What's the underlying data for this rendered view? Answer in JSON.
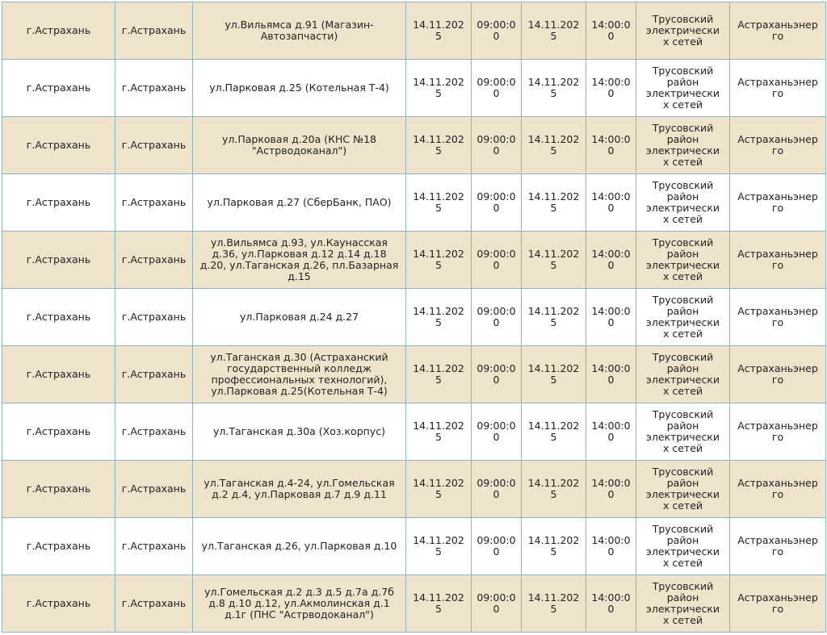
{
  "table": {
    "rows": [
      [
        "г.Астрахань",
        "г.Астрахань",
        "ул.Вильямса д.91 (Магазин-Автозапчасти)",
        "14.11.2025",
        "09:00:00",
        "14.11.2025",
        "14:00:00",
        "Трусовский электрических сетей",
        "Астраханьэнерго"
      ],
      [
        "г.Астрахань",
        "г.Астрахань",
        "ул.Парковая д.25 (Котельная Т-4)",
        "14.11.2025",
        "09:00:00",
        "14.11.2025",
        "14:00:00",
        "Трусовский район электрических сетей",
        "Астраханьэнерго"
      ],
      [
        "г.Астрахань",
        "г.Астрахань",
        "ул.Парковая д.20а (КНС №18 \"Астрводоканал\")",
        "14.11.2025",
        "09:00:00",
        "14.11.2025",
        "14:00:00",
        "Трусовский район электрических сетей",
        "Астраханьэнерго"
      ],
      [
        "г.Астрахань",
        "г.Астрахань",
        "ул.Парковая д.27 (СберБанк, ПАО)",
        "14.11.2025",
        "09:00:00",
        "14.11.2025",
        "14:00:00",
        "Трусовский район электрических сетей",
        "Астраханьэнерго"
      ],
      [
        "г.Астрахань",
        "г.Астрахань",
        "ул.Вильямса д.93, ул.Каунасская д.36, ул.Парковая д.12 д.14 д.18 д.20, ул.Таганская д.26, пл.Базарная д.15",
        "14.11.2025",
        "09:00:00",
        "14.11.2025",
        "14:00:00",
        "Трусовский район электрических сетей",
        "Астраханьэнерго"
      ],
      [
        "г.Астрахань",
        "г.Астрахань",
        "ул.Парковая д.24 д.27",
        "14.11.2025",
        "09:00:00",
        "14.11.2025",
        "14:00:00",
        "Трусовский район электрических сетей",
        "Астраханьэнерго"
      ],
      [
        "г.Астрахань",
        "г.Астрахань",
        "ул.Таганская д.30 (Астраханский государственный колледж профессиональных технологий), ул.Парковая д.25(Котельная Т-4)",
        "14.11.2025",
        "09:00:00",
        "14.11.2025",
        "14:00:00",
        "Трусовский район электрических сетей",
        "Астраханьэнерго"
      ],
      [
        "г.Астрахань",
        "г.Астрахань",
        "ул.Таганская д.30а (Хоз.корпус)",
        "14.11.2025",
        "09:00:00",
        "14.11.2025",
        "14:00:00",
        "Трусовский район электрических сетей",
        "Астраханьэнерго"
      ],
      [
        "г.Астрахань",
        "г.Астрахань",
        "ул.Таганская д.4-24, ул.Гомельская д.2 д.4, ул.Парковая д.7 д.9 д.11",
        "14.11.2025",
        "09:00:00",
        "14.11.2025",
        "14:00:00",
        "Трусовский район электрических сетей",
        "Астраханьэнерго"
      ],
      [
        "г.Астрахань",
        "г.Астрахань",
        "ул.Таганская д.26, ул.Парковая д.10",
        "14.11.2025",
        "09:00:00",
        "14.11.2025",
        "14:00:00",
        "Трусовский район электрических сетей",
        "Астраханьэнерго"
      ],
      [
        "г.Астрахань",
        "г.Астрахань",
        "ул.Гомельская д.2 д.3 д.5 д.7а д.7б д.8 д.10 д.12, ул.Акмолинская д.1 д.1г (ПНС \"Астрводоканал\")",
        "14.11.2025",
        "09:00:00",
        "14.11.2025",
        "14:00:00",
        "Трусовский район электрических сетей",
        "Астраханьэнерго"
      ]
    ]
  }
}
